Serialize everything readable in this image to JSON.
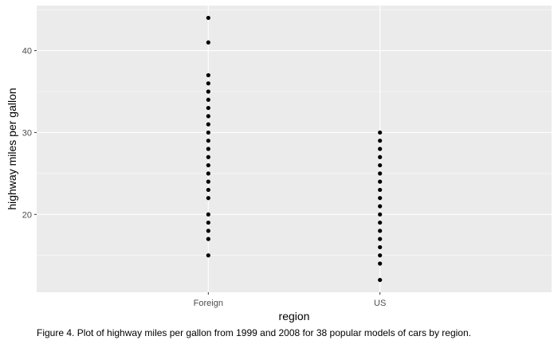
{
  "chart_data": {
    "type": "scatter",
    "title": "",
    "xlabel": "region",
    "ylabel": "highway miles per gallon",
    "categories": [
      "Foreign",
      "US"
    ],
    "ylim": [
      10.5,
      45.5
    ],
    "yticks": [
      20,
      30,
      40
    ],
    "grid": true,
    "legend": "none",
    "series": [
      {
        "category": "Foreign",
        "y": [
          15,
          17,
          18,
          19,
          20,
          22,
          23,
          24,
          25,
          26,
          27,
          28,
          29,
          30,
          31,
          32,
          33,
          34,
          35,
          36,
          37,
          41,
          44
        ]
      },
      {
        "category": "US",
        "y": [
          12,
          14,
          15,
          16,
          17,
          18,
          19,
          20,
          21,
          22,
          23,
          24,
          25,
          26,
          27,
          28,
          29,
          30
        ]
      }
    ],
    "colors": {
      "panel_background": "#ebebeb",
      "grid_major": "#ffffff",
      "point": "#000000",
      "tick_text": "#4d4d4d",
      "title_text": "#000000"
    }
  },
  "caption": "Figure 4. Plot of highway miles per gallon from 1999 and 2008 for 38 popular models of cars by region."
}
